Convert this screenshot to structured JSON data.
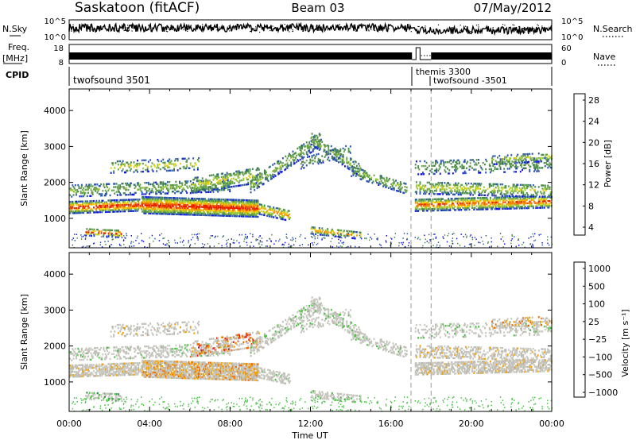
{
  "header": {
    "station": "Saskatoon (fitACF)",
    "beam": "Beam 03",
    "date": "07/May/2012"
  },
  "summary": {
    "nsky_label": "N.Sky",
    "nsky_ticks": [
      "10^5",
      "10^0"
    ],
    "nsearch_label": "N.Search",
    "nsearch_ticks": [
      "10^5",
      "10^0"
    ],
    "freq_label": "Freq.",
    "freq_unit": "[MHz]",
    "freq_ticks": [
      "18",
      "8"
    ],
    "nave_label": "Nave",
    "nave_ticks": [
      "60",
      "0"
    ],
    "cpid_label": "CPID",
    "cpid_segments": [
      "twofsound 3501",
      "themis 3300",
      "twofsound -3501"
    ]
  },
  "colors": {
    "power": [
      "#1010ee",
      "#2b56b0",
      "#4a8a4a",
      "#6ca24e",
      "#9acb30",
      "#f0d000",
      "#f5a000",
      "#ee6a00",
      "#e82000"
    ],
    "velocity": [
      "#ee1010",
      "#ee6600",
      "#f5a000",
      "#bdbdb5",
      "#c8c8c0",
      "#46c040",
      "#3b8c4b",
      "#2f5fb0",
      "#2030c0"
    ]
  },
  "chart_data": [
    {
      "type": "heatmap",
      "title": "",
      "xlabel": "",
      "ylabel": "Slant Range [km]",
      "xlim": [
        "00:00",
        "00:00"
      ],
      "ylim": [
        180,
        4600
      ],
      "x_ticks": [
        "00:00",
        "04:00",
        "08:00",
        "12:00",
        "16:00",
        "20:00",
        "00:00"
      ],
      "y_ticks": [
        1000,
        2000,
        3000,
        4000
      ],
      "colorbar_label": "Power [dB]",
      "colorbar_ticks": [
        4,
        8,
        12,
        16,
        20,
        24,
        28
      ],
      "clim": [
        0,
        30
      ]
    },
    {
      "type": "heatmap",
      "title": "",
      "xlabel": "Time UT",
      "ylabel": "Slant Range [km]",
      "xlim": [
        "00:00",
        "00:00"
      ],
      "ylim": [
        180,
        4600
      ],
      "x_ticks": [
        "00:00",
        "04:00",
        "08:00",
        "12:00",
        "16:00",
        "20:00",
        "00:00"
      ],
      "y_ticks": [
        1000,
        2000,
        3000,
        4000
      ],
      "colorbar_label": "Velocity [m s⁻¹]",
      "colorbar_ticks": [
        "1000",
        "500",
        "100",
        "25",
        "−25",
        "−100",
        "−500",
        "−1000"
      ]
    }
  ]
}
